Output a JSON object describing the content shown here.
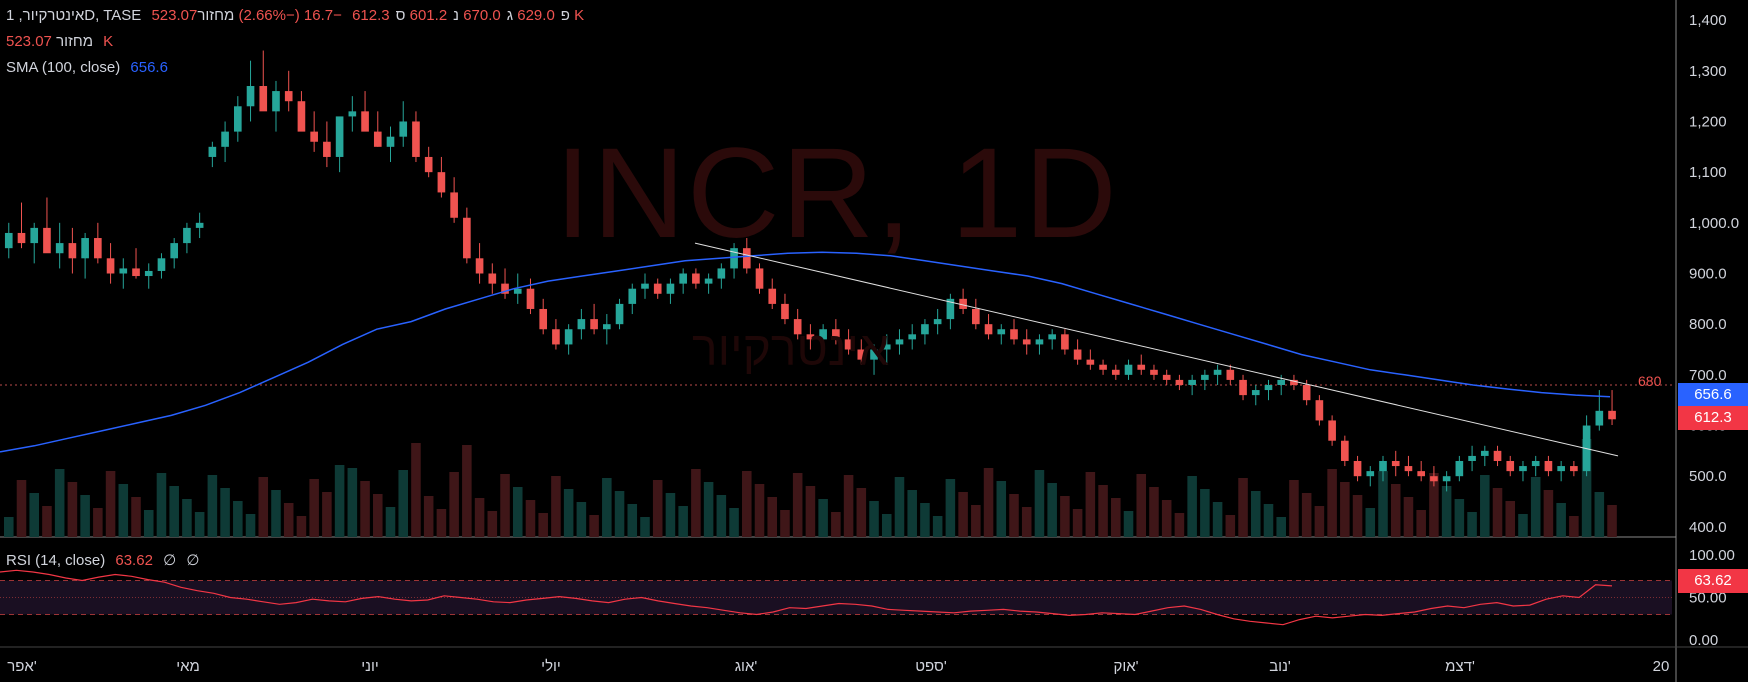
{
  "legend": {
    "line1": {
      "symbol": "אינטרקיור, 1D, TASE",
      "o_label": "פ",
      "o": "629.0",
      "h_label": "ג",
      "h": "670.0",
      "l_label": "נ",
      "l": "601.2",
      "c_label": "ס",
      "c": "612.3",
      "change": "−16.7 (−2.66%)",
      "vol_label": "מחזור",
      "vol": "523.07 K"
    },
    "line2": {
      "label": "מחזור",
      "value": "523.07 K"
    },
    "line3": {
      "label": "SMA (100, close)",
      "value": "656.6"
    },
    "rsi": {
      "label": "RSI (14, close)",
      "value": "63.62",
      "extra1": "∅",
      "extra2": "∅"
    }
  },
  "watermark": {
    "symbol": "INCR, 1D",
    "name": "אינטרקיור"
  },
  "price_tags": {
    "sma": "656.6",
    "close": "612.3",
    "rsi": "63.62",
    "level": "680"
  },
  "colors": {
    "up": "#26a69a",
    "down": "#ef5350",
    "sma": "#2962ff",
    "rsi": "#f23645",
    "bg": "#000000"
  },
  "chart_data": [
    {
      "type": "candlestick",
      "title": "INCR, 1D",
      "y_axis_ticks": [
        "1,400",
        "1,300",
        "1,200",
        "1,100",
        "1,000.0",
        "900.0",
        "800.0",
        "700.0",
        "600.0",
        "500.0",
        "400.0"
      ],
      "ylim": [
        380,
        1420
      ],
      "x_axis_labels": [
        "אפר'",
        "מאי",
        "יוני",
        "יולי",
        "אוג'",
        "ספט'",
        "אוק'",
        "נוב'",
        "דצמ'",
        "20"
      ],
      "horizontal_line": 680,
      "ohlc_approx": [
        [
          950,
          1000,
          930,
          980
        ],
        [
          980,
          1040,
          950,
          960
        ],
        [
          960,
          1000,
          920,
          990
        ],
        [
          990,
          1050,
          960,
          940
        ],
        [
          940,
          1000,
          910,
          960
        ],
        [
          960,
          990,
          900,
          930
        ],
        [
          930,
          980,
          890,
          970
        ],
        [
          970,
          1000,
          920,
          930
        ],
        [
          930,
          960,
          880,
          900
        ],
        [
          900,
          930,
          870,
          910
        ],
        [
          910,
          950,
          890,
          895
        ],
        [
          895,
          920,
          870,
          905
        ],
        [
          905,
          940,
          890,
          930
        ],
        [
          930,
          970,
          910,
          960
        ],
        [
          960,
          1000,
          940,
          990
        ],
        [
          990,
          1020,
          970,
          1000
        ],
        [
          1130,
          1160,
          1110,
          1150
        ],
        [
          1150,
          1200,
          1120,
          1180
        ],
        [
          1180,
          1250,
          1160,
          1230
        ],
        [
          1230,
          1320,
          1200,
          1270
        ],
        [
          1270,
          1340,
          1230,
          1220
        ],
        [
          1220,
          1280,
          1180,
          1260
        ],
        [
          1260,
          1300,
          1220,
          1240
        ],
        [
          1240,
          1260,
          1200,
          1180
        ],
        [
          1180,
          1220,
          1140,
          1160
        ],
        [
          1160,
          1200,
          1110,
          1130
        ],
        [
          1130,
          1170,
          1100,
          1210
        ],
        [
          1210,
          1250,
          1180,
          1220
        ],
        [
          1220,
          1260,
          1190,
          1180
        ],
        [
          1180,
          1220,
          1150,
          1150
        ],
        [
          1150,
          1190,
          1120,
          1170
        ],
        [
          1170,
          1240,
          1150,
          1200
        ],
        [
          1200,
          1220,
          1120,
          1130
        ],
        [
          1130,
          1150,
          1090,
          1100
        ],
        [
          1100,
          1130,
          1050,
          1060
        ],
        [
          1060,
          1090,
          1000,
          1010
        ],
        [
          1010,
          1030,
          920,
          930
        ],
        [
          930,
          960,
          880,
          900
        ],
        [
          900,
          920,
          860,
          880
        ],
        [
          880,
          910,
          850,
          860
        ],
        [
          860,
          900,
          840,
          870
        ],
        [
          870,
          890,
          820,
          830
        ],
        [
          830,
          850,
          780,
          790
        ],
        [
          790,
          810,
          750,
          760
        ],
        [
          760,
          800,
          740,
          790
        ],
        [
          790,
          830,
          770,
          810
        ],
        [
          810,
          840,
          780,
          790
        ],
        [
          790,
          820,
          760,
          800
        ],
        [
          800,
          850,
          790,
          840
        ],
        [
          840,
          880,
          820,
          870
        ],
        [
          870,
          900,
          850,
          880
        ],
        [
          880,
          890,
          850,
          860
        ],
        [
          860,
          890,
          840,
          880
        ],
        [
          880,
          910,
          860,
          900
        ],
        [
          900,
          910,
          870,
          880
        ],
        [
          880,
          900,
          860,
          890
        ],
        [
          890,
          920,
          870,
          910
        ],
        [
          910,
          960,
          890,
          950
        ],
        [
          950,
          970,
          900,
          910
        ],
        [
          910,
          920,
          860,
          870
        ],
        [
          870,
          890,
          830,
          840
        ],
        [
          840,
          860,
          800,
          810
        ],
        [
          810,
          830,
          770,
          780
        ],
        [
          780,
          800,
          750,
          770
        ],
        [
          770,
          800,
          740,
          790
        ],
        [
          790,
          810,
          760,
          770
        ],
        [
          770,
          790,
          740,
          750
        ],
        [
          750,
          770,
          720,
          730
        ],
        [
          730,
          760,
          700,
          750
        ],
        [
          750,
          780,
          720,
          760
        ],
        [
          760,
          790,
          740,
          770
        ],
        [
          770,
          800,
          750,
          780
        ],
        [
          780,
          810,
          760,
          800
        ],
        [
          800,
          830,
          780,
          810
        ],
        [
          810,
          860,
          790,
          850
        ],
        [
          850,
          870,
          820,
          830
        ],
        [
          830,
          850,
          790,
          800
        ],
        [
          800,
          820,
          770,
          780
        ],
        [
          780,
          800,
          760,
          790
        ],
        [
          790,
          810,
          760,
          770
        ],
        [
          770,
          790,
          740,
          760
        ],
        [
          760,
          780,
          740,
          770
        ],
        [
          770,
          790,
          750,
          780
        ],
        [
          780,
          790,
          740,
          750
        ],
        [
          750,
          770,
          720,
          730
        ],
        [
          730,
          750,
          710,
          720
        ],
        [
          720,
          730,
          700,
          710
        ],
        [
          710,
          720,
          690,
          700
        ],
        [
          700,
          730,
          690,
          720
        ],
        [
          720,
          740,
          700,
          710
        ],
        [
          710,
          720,
          690,
          700
        ],
        [
          700,
          710,
          680,
          690
        ],
        [
          690,
          700,
          670,
          680
        ],
        [
          680,
          700,
          660,
          690
        ],
        [
          690,
          710,
          670,
          700
        ],
        [
          700,
          720,
          680,
          710
        ],
        [
          710,
          720,
          680,
          690
        ],
        [
          690,
          700,
          650,
          660
        ],
        [
          660,
          680,
          640,
          670
        ],
        [
          670,
          690,
          650,
          680
        ],
        [
          680,
          700,
          660,
          690
        ],
        [
          690,
          700,
          670,
          680
        ],
        [
          680,
          690,
          640,
          650
        ],
        [
          650,
          660,
          600,
          610
        ],
        [
          610,
          620,
          560,
          570
        ],
        [
          570,
          580,
          520,
          530
        ],
        [
          530,
          540,
          490,
          500
        ],
        [
          500,
          520,
          480,
          510
        ],
        [
          510,
          540,
          490,
          530
        ],
        [
          530,
          550,
          500,
          520
        ],
        [
          520,
          540,
          500,
          510
        ],
        [
          510,
          530,
          490,
          500
        ],
        [
          500,
          520,
          480,
          490
        ],
        [
          490,
          510,
          470,
          500
        ],
        [
          500,
          540,
          490,
          530
        ],
        [
          530,
          560,
          510,
          540
        ],
        [
          540,
          560,
          520,
          550
        ],
        [
          550,
          560,
          520,
          530
        ],
        [
          530,
          540,
          500,
          510
        ],
        [
          510,
          530,
          490,
          520
        ],
        [
          520,
          540,
          500,
          530
        ],
        [
          530,
          540,
          500,
          510
        ],
        [
          510,
          530,
          490,
          520
        ],
        [
          520,
          530,
          500,
          510
        ],
        [
          510,
          620,
          500,
          600
        ],
        [
          600,
          670,
          590,
          629
        ],
        [
          629,
          670,
          601,
          612.3
        ]
      ],
      "sma_100_approx": [
        548,
        560,
        575,
        590,
        605,
        620,
        640,
        665,
        695,
        725,
        760,
        790,
        805,
        830,
        850,
        870,
        885,
        895,
        905,
        915,
        925,
        930,
        935,
        940,
        942,
        940,
        935,
        925,
        915,
        905,
        895,
        880,
        860,
        840,
        820,
        800,
        780,
        760,
        740,
        725,
        710,
        700,
        690,
        680,
        672,
        665,
        660,
        656.6
      ]
    },
    {
      "type": "line",
      "title": "RSI (14, close)",
      "y_axis_ticks": [
        "100.00",
        "50.00",
        "0.00"
      ],
      "ylim": [
        0,
        100
      ],
      "bands": [
        70,
        50,
        30
      ],
      "values_approx": [
        80,
        82,
        80,
        77,
        73,
        70,
        74,
        77,
        75,
        71,
        68,
        62,
        58,
        55,
        50,
        48,
        45,
        42,
        44,
        48,
        46,
        45,
        49,
        51,
        48,
        46,
        47,
        52,
        50,
        48,
        45,
        44,
        47,
        49,
        51,
        49,
        46,
        44,
        48,
        50,
        46,
        43,
        40,
        38,
        35,
        32,
        30,
        33,
        38,
        37,
        40,
        43,
        42,
        40,
        36,
        35,
        34,
        33,
        32,
        34,
        35,
        36,
        34,
        33,
        31,
        29,
        30,
        32,
        31,
        30,
        34,
        38,
        40,
        36,
        30,
        25,
        22,
        20,
        18,
        24,
        28,
        26,
        28,
        30,
        29,
        31,
        33,
        37,
        40,
        38,
        42,
        44,
        40,
        41,
        48,
        52,
        50,
        65,
        63.62
      ]
    }
  ]
}
